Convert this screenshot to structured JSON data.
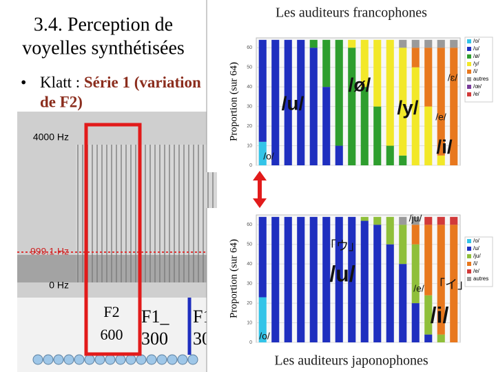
{
  "slide": {
    "title_lines": [
      "3.4. Perception de",
      "voyelles synthétisées"
    ],
    "bullet": {
      "label": "Klatt : ",
      "emphasis": "Série 1 (variation",
      "continuation": "de F2)"
    }
  },
  "spectrogram": {
    "freq_labels": [
      "4000 Hz",
      "999.1 Hz",
      "0 Hz"
    ],
    "highlight": [
      "F2",
      "600"
    ],
    "cells": [
      [
        "F1_",
        "300"
      ],
      [
        "F1",
        "30"
      ]
    ]
  },
  "chart_data": [
    {
      "type": "bar",
      "stacked": true,
      "title": "Les auditeurs francophones",
      "ylabel": "Proportion (sur 64)",
      "categories": [
        null,
        null,
        null,
        null,
        null,
        null,
        null,
        null,
        null,
        null,
        null,
        null,
        null,
        null,
        null,
        null
      ],
      "ylim": [
        0,
        65
      ],
      "yticks": [
        0,
        10,
        20,
        30,
        40,
        50,
        60
      ],
      "series": [
        {
          "name": "/o/",
          "color": "#33c4e8",
          "values": [
            12,
            0,
            0,
            0,
            0,
            0,
            0,
            0,
            0,
            0,
            0,
            0,
            0,
            0,
            0,
            0
          ]
        },
        {
          "name": "/u/",
          "color": "#1f2fbf",
          "values": [
            52,
            64,
            64,
            64,
            60,
            40,
            10,
            0,
            0,
            0,
            0,
            0,
            0,
            0,
            0,
            0
          ]
        },
        {
          "name": "/ø/",
          "color": "#2e9e2e",
          "values": [
            0,
            0,
            0,
            0,
            4,
            24,
            54,
            60,
            40,
            30,
            10,
            5,
            0,
            0,
            0,
            0
          ]
        },
        {
          "name": "/y/",
          "color": "#f2e829",
          "values": [
            0,
            0,
            0,
            0,
            0,
            0,
            0,
            4,
            24,
            34,
            54,
            55,
            50,
            30,
            5,
            0
          ]
        },
        {
          "name": "/i/",
          "color": "#e8781e",
          "values": [
            0,
            0,
            0,
            0,
            0,
            0,
            0,
            0,
            0,
            0,
            0,
            0,
            10,
            30,
            55,
            60
          ]
        },
        {
          "name": "autres",
          "color": "#9a9a9a",
          "values": [
            0,
            0,
            0,
            0,
            0,
            0,
            0,
            0,
            0,
            0,
            0,
            4,
            4,
            4,
            4,
            4
          ]
        },
        {
          "name": "/œ/",
          "color": "#7a3b9a",
          "values": [
            0,
            0,
            0,
            0,
            0,
            0,
            0,
            0,
            0,
            0,
            0,
            0,
            0,
            0,
            0,
            0
          ]
        },
        {
          "name": "/e/",
          "color": "#d23a3a",
          "values": [
            0,
            0,
            0,
            0,
            0,
            0,
            0,
            0,
            0,
            0,
            0,
            0,
            0,
            0,
            0,
            0
          ]
        }
      ],
      "annotations": [
        "/u/",
        "/ø/",
        "/y/",
        "/i/",
        "/o/",
        "/ɛ/",
        "/e/"
      ]
    },
    {
      "type": "bar",
      "stacked": true,
      "title": "Les auditeurs japonophones",
      "ylabel": "Proportion (sur 64)",
      "categories": [
        null,
        null,
        null,
        null,
        null,
        null,
        null,
        null,
        null,
        null,
        null,
        null,
        null,
        null,
        null,
        null
      ],
      "ylim": [
        0,
        65
      ],
      "yticks": [
        0,
        10,
        20,
        30,
        40,
        50,
        60
      ],
      "series": [
        {
          "name": "/o/",
          "color": "#33c4e8",
          "values": [
            23,
            0,
            0,
            0,
            0,
            0,
            0,
            0,
            0,
            0,
            0,
            0,
            0,
            0,
            0,
            0
          ]
        },
        {
          "name": "/u/",
          "color": "#1f2fbf",
          "values": [
            41,
            64,
            64,
            64,
            64,
            64,
            64,
            64,
            62,
            60,
            50,
            40,
            20,
            4,
            0,
            0
          ]
        },
        {
          "name": "/ju/",
          "color": "#8fbf3a",
          "values": [
            0,
            0,
            0,
            0,
            0,
            0,
            0,
            0,
            2,
            4,
            14,
            20,
            30,
            20,
            4,
            0
          ]
        },
        {
          "name": "/i/",
          "color": "#e8781e",
          "values": [
            0,
            0,
            0,
            0,
            0,
            0,
            0,
            0,
            0,
            0,
            0,
            0,
            10,
            36,
            56,
            60
          ]
        },
        {
          "name": "/e/",
          "color": "#d23a3a",
          "values": [
            0,
            0,
            0,
            0,
            0,
            0,
            0,
            0,
            0,
            0,
            0,
            0,
            0,
            4,
            4,
            4
          ]
        },
        {
          "name": "autres",
          "color": "#9a9a9a",
          "values": [
            0,
            0,
            0,
            0,
            0,
            0,
            0,
            0,
            0,
            0,
            0,
            4,
            4,
            0,
            0,
            0
          ]
        }
      ],
      "annotations": [
        "/ju/",
        "「ウ」",
        "/u/",
        "/e/",
        "「イ」",
        "/i/",
        "/o/"
      ]
    }
  ]
}
